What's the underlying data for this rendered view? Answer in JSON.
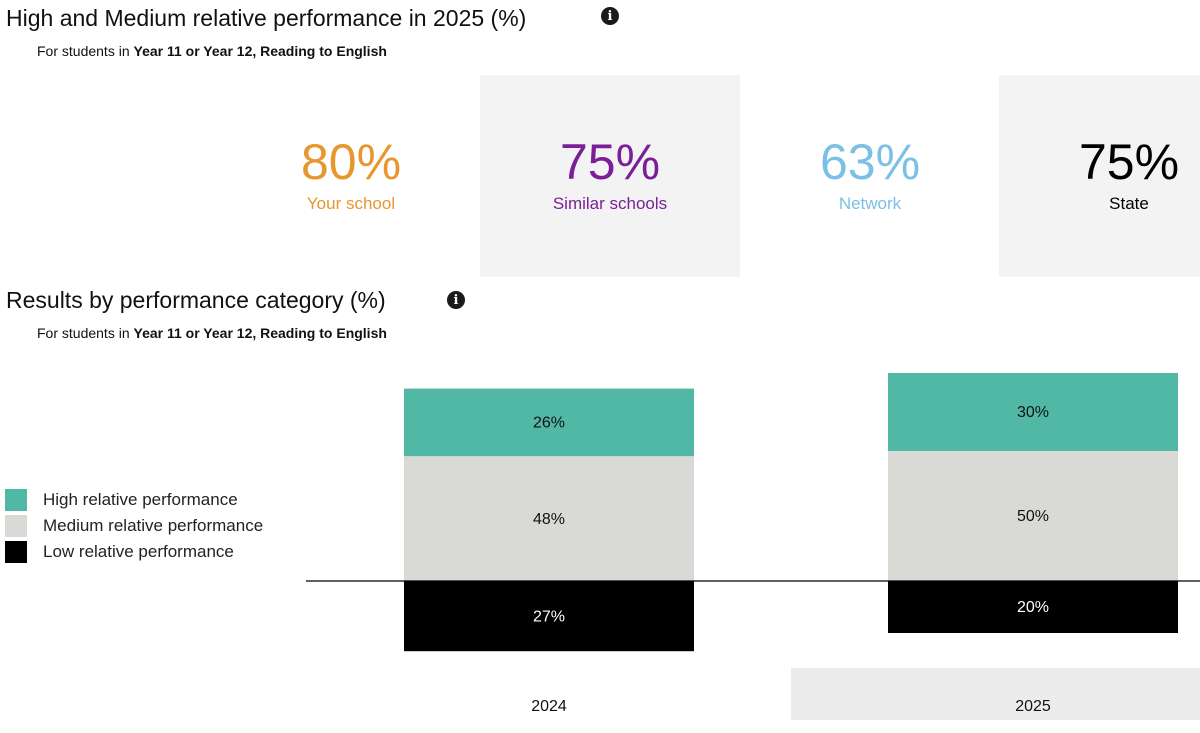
{
  "summary": {
    "title": "High and Medium relative performance in 2025 (%)",
    "subtitle_prefix": "For students in ",
    "subtitle_bold": "Year 11 or Year 12, Reading to English",
    "info_icon": "i",
    "cards": [
      {
        "value": "80%",
        "label": "Your school",
        "color": "#E8962E"
      },
      {
        "value": "75%",
        "label": "Similar schools",
        "color": "#7B1F99"
      },
      {
        "value": "63%",
        "label": "Network",
        "color": "#7CC0E6"
      },
      {
        "value": "75%",
        "label": "State",
        "color": "#000000"
      }
    ]
  },
  "results": {
    "title": "Results by performance category (%)",
    "subtitle_prefix": "For students in ",
    "subtitle_bold": "Year 11 or Year 12, Reading to English",
    "info_icon": "i"
  },
  "chart_data": {
    "type": "bar",
    "stacked": true,
    "baseline_between": "Medium relative performance|Low relative performance",
    "categories": [
      "2024",
      "2025"
    ],
    "highlight_category": "2025",
    "series": [
      {
        "name": "High relative performance",
        "values": [
          26,
          30
        ],
        "labels": [
          "26%",
          "30%"
        ],
        "color": "#52B8A6",
        "position": "above"
      },
      {
        "name": "Medium relative performance",
        "values": [
          48,
          50
        ],
        "labels": [
          "48%",
          "50%"
        ],
        "color": "#D9DAD5",
        "position": "above"
      },
      {
        "name": "Low relative performance",
        "values": [
          27,
          20
        ],
        "labels": [
          "27%",
          "20%"
        ],
        "color": "#000000",
        "position": "below"
      }
    ],
    "legend_position": "left"
  }
}
